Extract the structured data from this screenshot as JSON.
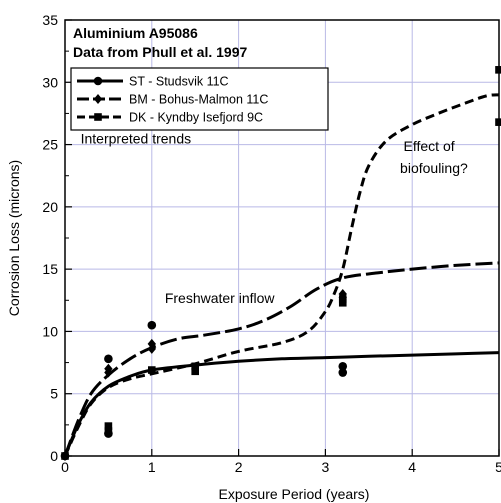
{
  "chart_data": {
    "type": "scatter",
    "title_lines": [
      "Aluminium A95086",
      "Data from Phull et al. 1997"
    ],
    "xlabel": "Exposure Period (years)",
    "ylabel": "Corrosion Loss (microns)",
    "xlim": [
      0,
      5
    ],
    "ylim": [
      0,
      35
    ],
    "xticks": [
      0,
      1,
      2,
      3,
      4,
      5
    ],
    "yticks": [
      0,
      5,
      10,
      15,
      20,
      25,
      30,
      35
    ],
    "grid": true,
    "legend_position": "top-left",
    "series": [
      {
        "name": "ST - Studsvik   11C",
        "marker": "circle",
        "dash": "solid",
        "color": "#000000",
        "points": [
          [
            0,
            0
          ],
          [
            0.5,
            7.8
          ],
          [
            0.5,
            1.8
          ],
          [
            1,
            10.5
          ],
          [
            3.2,
            7.2
          ],
          [
            3.2,
            6.7
          ]
        ],
        "trend": [
          [
            0,
            0
          ],
          [
            0.15,
            2.5
          ],
          [
            0.3,
            4.3
          ],
          [
            0.5,
            5.6
          ],
          [
            0.75,
            6.4
          ],
          [
            1,
            6.9
          ],
          [
            1.5,
            7.3
          ],
          [
            2,
            7.6
          ],
          [
            2.5,
            7.8
          ],
          [
            3,
            7.9
          ],
          [
            3.5,
            8.0
          ],
          [
            4,
            8.1
          ],
          [
            4.5,
            8.2
          ],
          [
            5,
            8.3
          ]
        ]
      },
      {
        "name": "BM - Bohus-Malmon  11C",
        "marker": "diamond",
        "dash": "longdash",
        "color": "#000000",
        "points": [
          [
            0,
            0
          ],
          [
            0.5,
            7.0
          ],
          [
            0.5,
            6.7
          ],
          [
            1,
            9.0
          ],
          [
            1,
            8.6
          ],
          [
            3.2,
            13.0
          ],
          [
            3.2,
            12.7
          ]
        ],
        "trend": [
          [
            0,
            0
          ],
          [
            0.15,
            2.8
          ],
          [
            0.3,
            5.0
          ],
          [
            0.5,
            6.5
          ],
          [
            0.75,
            7.8
          ],
          [
            1,
            8.7
          ],
          [
            1.3,
            9.4
          ],
          [
            1.6,
            9.7
          ],
          [
            2,
            10.2
          ],
          [
            2.3,
            10.9
          ],
          [
            2.6,
            12.0
          ],
          [
            2.9,
            13.4
          ],
          [
            3.2,
            14.3
          ],
          [
            3.6,
            14.7
          ],
          [
            4,
            15.0
          ],
          [
            4.5,
            15.3
          ],
          [
            5,
            15.5
          ]
        ]
      },
      {
        "name": "DK - Kyndby Isefjord  9C",
        "marker": "square",
        "dash": "dash",
        "color": "#000000",
        "points": [
          [
            0,
            0
          ],
          [
            0.5,
            2.4
          ],
          [
            0.5,
            2.0
          ],
          [
            1,
            6.9
          ],
          [
            1.5,
            7.2
          ],
          [
            1.5,
            6.8
          ],
          [
            3.2,
            12.6
          ],
          [
            3.2,
            12.3
          ],
          [
            5,
            31.0
          ],
          [
            5,
            26.8
          ]
        ],
        "trend": [
          [
            0,
            0
          ],
          [
            0.15,
            2.3
          ],
          [
            0.3,
            4.2
          ],
          [
            0.5,
            5.5
          ],
          [
            0.75,
            6.2
          ],
          [
            1,
            6.6
          ],
          [
            1.5,
            7.4
          ],
          [
            2,
            8.4
          ],
          [
            2.5,
            9.1
          ],
          [
            2.8,
            10.0
          ],
          [
            3.0,
            11.6
          ],
          [
            3.1,
            13.0
          ],
          [
            3.2,
            15.0
          ],
          [
            3.3,
            18.2
          ],
          [
            3.4,
            21.2
          ],
          [
            3.5,
            23.3
          ],
          [
            3.7,
            25.3
          ],
          [
            4.0,
            26.6
          ],
          [
            4.3,
            27.5
          ],
          [
            4.6,
            28.3
          ],
          [
            4.85,
            28.9
          ],
          [
            5,
            29.0
          ]
        ]
      }
    ],
    "annotations": [
      {
        "text": "Interpreted trends",
        "x": 0.18,
        "y": 25.1
      },
      {
        "text": "Freshwater inflow",
        "x": 1.15,
        "y": 12.3
      },
      {
        "text": "Effect of",
        "x": 3.9,
        "y": 24.5
      },
      {
        "text": "biofouling?",
        "x": 3.86,
        "y": 22.7
      }
    ]
  }
}
